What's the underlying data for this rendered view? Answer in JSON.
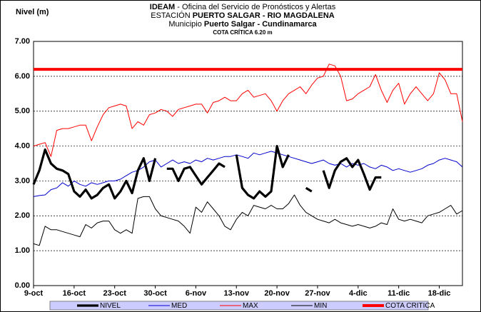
{
  "chart_data": {
    "type": "line",
    "title_lines": [
      [
        {
          "text": "IDEAM",
          "bold": true
        },
        {
          "text": " - Oficina del Servicio de Pronósticos y Alertas"
        }
      ],
      [
        {
          "text": "ESTACIÓN "
        },
        {
          "text": "PUERTO SALGAR - RIO MAGDALENA",
          "bold": true
        }
      ],
      [
        {
          "text": "Municipio "
        },
        {
          "text": "Puerto Salgar - Cundinamarca",
          "bold": true
        }
      ]
    ],
    "annotation": "COTA CRÍTICA 6.20 m",
    "annotation_color": "#ff0000",
    "ylabel": "Nivel (m)",
    "categories": [
      "9-oct",
      null,
      null,
      null,
      null,
      null,
      null,
      "16-oct",
      null,
      null,
      null,
      null,
      null,
      null,
      "23-oct",
      null,
      null,
      null,
      null,
      null,
      null,
      "30-oct",
      null,
      null,
      null,
      null,
      null,
      null,
      "6-nov",
      null,
      null,
      null,
      null,
      null,
      null,
      "13-nov",
      null,
      null,
      null,
      null,
      null,
      null,
      "20-nov",
      null,
      null,
      null,
      null,
      null,
      null,
      "27-nov",
      null,
      null,
      null,
      null,
      null,
      null,
      "4-dic",
      null,
      null,
      null,
      null,
      null,
      null,
      "11-dic",
      null,
      null,
      null,
      null,
      null,
      null,
      "18-dic",
      null,
      null,
      null,
      null
    ],
    "series": [
      {
        "name": "NIVEL",
        "color": "#000000",
        "width": 3.2,
        "values": [
          2.9,
          3.3,
          3.9,
          3.5,
          3.35,
          3.3,
          3.2,
          2.7,
          2.55,
          2.75,
          2.5,
          2.6,
          2.8,
          2.9,
          2.5,
          2.7,
          3.0,
          2.65,
          3.3,
          3.65,
          3.0,
          3.65,
          null,
          3.35,
          3.35,
          3.0,
          3.35,
          3.4,
          3.15,
          2.9,
          3.1,
          3.3,
          3.5,
          3.4,
          null,
          3.75,
          2.8,
          2.6,
          2.5,
          2.7,
          2.55,
          2.7,
          4.0,
          3.4,
          3.75,
          null,
          null,
          2.8,
          2.7,
          null,
          3.3,
          2.8,
          3.3,
          3.55,
          3.65,
          3.4,
          3.6,
          3.2,
          2.75,
          3.1,
          3.1,
          null,
          null,
          null,
          null,
          null,
          null,
          null,
          null,
          null,
          null,
          null,
          null,
          null,
          null
        ]
      },
      {
        "name": "MED",
        "color": "#0000cc",
        "width": 1,
        "values": [
          2.55,
          2.58,
          2.6,
          2.75,
          2.8,
          2.95,
          2.85,
          3.0,
          2.9,
          2.85,
          2.95,
          2.9,
          2.95,
          3.0,
          3.0,
          3.05,
          3.15,
          3.25,
          3.3,
          3.4,
          3.55,
          3.6,
          3.4,
          3.5,
          3.6,
          3.5,
          3.55,
          3.5,
          3.6,
          3.55,
          3.65,
          3.6,
          3.65,
          3.7,
          3.7,
          3.75,
          3.7,
          3.65,
          3.8,
          3.75,
          3.8,
          3.85,
          3.8,
          3.75,
          3.7,
          3.65,
          3.6,
          3.55,
          3.5,
          3.55,
          3.6,
          3.5,
          3.45,
          3.5,
          3.4,
          3.5,
          3.45,
          3.5,
          3.4,
          3.35,
          3.45,
          3.4,
          3.3,
          3.35,
          3.3,
          3.25,
          3.3,
          3.35,
          3.45,
          3.5,
          3.6,
          3.65,
          3.6,
          3.55,
          3.4
        ]
      },
      {
        "name": "MAX",
        "color": "#ff0000",
        "width": 1,
        "values": [
          4.0,
          4.05,
          4.1,
          3.7,
          4.45,
          4.5,
          4.5,
          4.55,
          4.6,
          4.6,
          4.15,
          4.55,
          4.9,
          5.1,
          5.15,
          5.2,
          5.15,
          4.5,
          4.7,
          4.6,
          4.9,
          4.95,
          5.05,
          5.0,
          4.85,
          5.05,
          5.1,
          5.15,
          5.2,
          5.2,
          4.95,
          5.25,
          5.3,
          5.4,
          5.3,
          5.3,
          5.5,
          5.6,
          5.4,
          5.45,
          5.5,
          5.3,
          5.0,
          5.3,
          5.5,
          5.6,
          5.7,
          5.5,
          5.75,
          5.95,
          6.0,
          6.35,
          6.3,
          6.0,
          5.3,
          5.35,
          5.5,
          5.6,
          5.7,
          6.05,
          5.6,
          5.25,
          5.6,
          5.8,
          5.2,
          5.5,
          5.7,
          5.5,
          5.3,
          5.5,
          6.1,
          5.9,
          5.5,
          5.5,
          4.7
        ]
      },
      {
        "name": "MIN",
        "color": "#000000",
        "width": 1,
        "values": [
          1.2,
          1.15,
          1.7,
          1.6,
          1.6,
          1.55,
          1.5,
          1.45,
          1.4,
          1.75,
          1.65,
          1.8,
          1.85,
          1.85,
          1.6,
          1.5,
          1.6,
          1.5,
          2.5,
          2.55,
          2.55,
          2.2,
          2.0,
          1.95,
          1.9,
          1.85,
          1.7,
          1.5,
          2.25,
          2.1,
          2.4,
          2.2,
          2.0,
          1.7,
          1.6,
          1.9,
          2.1,
          2.0,
          2.3,
          2.25,
          2.2,
          2.3,
          2.2,
          2.2,
          2.35,
          2.6,
          2.3,
          2.1,
          2.0,
          1.9,
          1.85,
          1.8,
          1.9,
          1.8,
          1.75,
          1.7,
          1.75,
          1.7,
          1.65,
          1.7,
          1.8,
          1.75,
          2.2,
          1.9,
          1.85,
          1.9,
          1.85,
          1.8,
          2.0,
          2.05,
          2.1,
          2.2,
          2.3,
          2.05,
          2.15
        ]
      }
    ],
    "threshold": {
      "name": "COTA CRITICA",
      "value": 6.2,
      "color": "#ff0000",
      "width": 4
    },
    "ylim": [
      0,
      7
    ],
    "yticks": [
      {
        "value": 0,
        "label": "0.00"
      },
      {
        "value": 1,
        "label": "1.00"
      },
      {
        "value": 2,
        "label": "2.00"
      },
      {
        "value": 3,
        "label": "3.00"
      },
      {
        "value": 4,
        "label": "4.00"
      },
      {
        "value": 5,
        "label": "5.00"
      },
      {
        "value": 6,
        "label": "6.00"
      },
      {
        "value": 7,
        "label": "7.00"
      }
    ],
    "grid": true,
    "legend_position": "bottom",
    "legend_color": "#ccccff"
  }
}
